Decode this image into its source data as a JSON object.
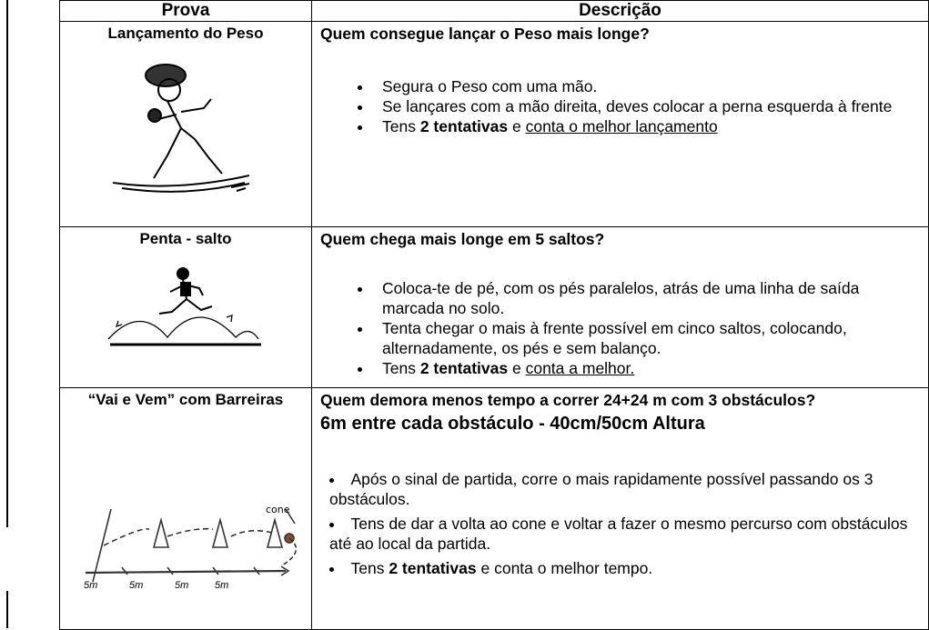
{
  "table": {
    "header": [
      "Prova",
      "Descrição"
    ],
    "rows": [
      {
        "prova": "Lançamento do Peso",
        "question": "Quem consegue lançar o Peso mais longe?",
        "bullets": [
          [
            {
              "text": "Segura o Peso com uma mão."
            }
          ],
          [
            {
              "text": "Se lançares com a mão direita, deves colocar a perna esquerda à frente"
            }
          ],
          [
            {
              "text": "Tens "
            },
            {
              "text": "2 tentativas",
              "bold": true
            },
            {
              "text": " e "
            },
            {
              "text": "conta o melhor lançamento",
              "underline": true
            }
          ]
        ]
      },
      {
        "prova": "Penta - salto",
        "question": "Quem chega mais longe em 5 saltos?",
        "bullets": [
          [
            {
              "text": "Coloca-te de pé, com os pés paralelos, atrás de uma linha de saída marcada no solo."
            }
          ],
          [
            {
              "text": "Tenta chegar o mais à frente possível em cinco saltos, colocando, alternadamente, os pés e sem balanço."
            }
          ],
          [
            {
              "text": "Tens "
            },
            {
              "text": "2 tentativas",
              "bold": true
            },
            {
              "text": " e "
            },
            {
              "text": "conta a melhor.",
              "underline": true
            }
          ]
        ]
      },
      {
        "prova": "“Vai e Vem” com Barreiras",
        "question": "Quem demora menos tempo a correr 24+24 m com 3 obstáculos?",
        "subtitle": "6m entre cada obstáculo - 40cm/50cm Altura",
        "figure_labels": [
          "cone",
          "5m"
        ],
        "bullets": [
          [
            {
              "text": "Após o sinal de partida, corre o mais rapidamente possível passando os 3 obstáculos."
            }
          ],
          [
            {
              "text": "Tens de dar a volta ao cone e voltar a fazer o mesmo percurso com obstáculos até ao local da partida."
            }
          ],
          [
            {
              "text": "Tens "
            },
            {
              "text": "2 tentativas",
              "bold": true
            },
            {
              "text": " e conta o melhor tempo."
            }
          ]
        ]
      }
    ]
  }
}
